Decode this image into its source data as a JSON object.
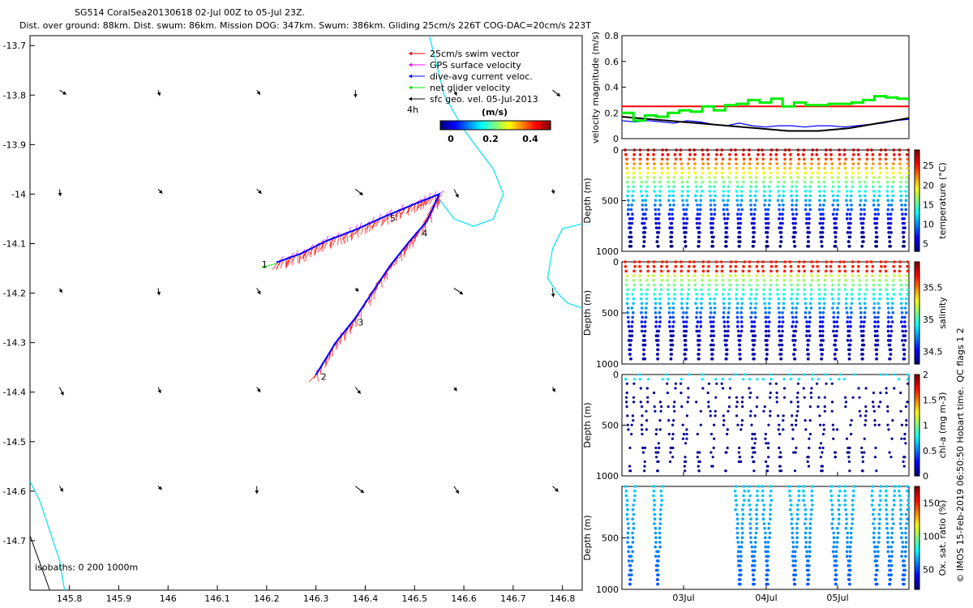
{
  "header": {
    "line1": "SG514 CoralSea20130618 02-Jul 00Z to 05-Jul 23Z.",
    "line2": "Dist. over ground: 88km. Dist. swum: 86km. Mission DOG: 347km. Swum: 386km. Gliding 25cm/s 226T COG-DAC=20cm/s 223T"
  },
  "colors": {
    "swim": "#ff0000",
    "gps": "#ff00ff",
    "dac": "#0000ff",
    "net": "#00ee00",
    "geo": "#000000",
    "isobath": "#00e5ee"
  },
  "map": {
    "xlim": [
      145.72,
      146.84
    ],
    "ylim": [
      -14.8,
      -13.68
    ],
    "xticks": [
      "145.8",
      "145.9",
      "146",
      "146.1",
      "146.2",
      "146.3",
      "146.4",
      "146.5",
      "146.6",
      "146.7",
      "146.8"
    ],
    "yticks": [
      "-13.7",
      "-13.8",
      "-13.9",
      "-14",
      "-14.1",
      "-14.2",
      "-14.3",
      "-14.4",
      "-14.5",
      "-14.6",
      "-14.7"
    ],
    "legend": [
      "25cm/s swim vector",
      "GPS surface velocity",
      "dive-avg current veloc.",
      "net glider velocity",
      "sfc geo. vel. 05-Jul-2013"
    ],
    "legend_note": "4h",
    "colorbar": {
      "label": "(m/s)",
      "ticks": [
        "0",
        "0.2",
        "0.4"
      ]
    },
    "isobath_label": "isobaths: 0   200  1000m",
    "track_labels": [
      {
        "text": "5",
        "lon": 146.45,
        "lat": -14.055
      },
      {
        "text": "4",
        "lon": 146.515,
        "lat": -14.085
      },
      {
        "text": "3",
        "lon": 146.385,
        "lat": -14.265
      },
      {
        "text": "2",
        "lon": 146.31,
        "lat": -14.375
      },
      {
        "text": "1",
        "lon": 146.19,
        "lat": -14.148
      }
    ],
    "track": [
      [
        146.3,
        -14.365
      ],
      [
        146.34,
        -14.3
      ],
      [
        146.38,
        -14.25
      ],
      [
        146.42,
        -14.19
      ],
      [
        146.45,
        -14.145
      ],
      [
        146.49,
        -14.095
      ],
      [
        146.525,
        -14.055
      ],
      [
        146.55,
        -14.0
      ],
      [
        146.5,
        -14.02
      ],
      [
        146.44,
        -14.045
      ],
      [
        146.38,
        -14.072
      ],
      [
        146.32,
        -14.095
      ],
      [
        146.27,
        -14.12
      ],
      [
        146.22,
        -14.138
      ]
    ]
  },
  "chart_data": [
    {
      "type": "line",
      "title": "",
      "ylabel": "velocity magnitude (m/s)",
      "ylim": [
        0,
        0.8
      ],
      "yticks": [
        "0",
        "0.2",
        "0.4",
        "0.6",
        "0.8"
      ],
      "series": [
        {
          "values": [
            0.25,
            0.25
          ]
        },
        {
          "values": [
            0.14,
            0.13,
            0.14,
            0.13,
            0.12,
            0.14,
            0.13,
            0.11,
            0.1,
            0.12,
            0.1,
            0.09,
            0.1,
            0.1,
            0.09,
            0.1,
            0.1,
            0.09,
            0.1,
            0.11,
            0.12,
            0.14,
            0.15
          ]
        },
        {
          "values": [
            0.17,
            0.16,
            0.15,
            0.14,
            0.13,
            0.12,
            0.11,
            0.1,
            0.09,
            0.08,
            0.07,
            0.06,
            0.06,
            0.06,
            0.07,
            0.08,
            0.1,
            0.12,
            0.14,
            0.16
          ]
        },
        {
          "values": [
            0.2,
            0.14,
            0.18,
            0.17,
            0.2,
            0.22,
            0.21,
            0.25,
            0.22,
            0.26,
            0.27,
            0.3,
            0.28,
            0.31,
            0.25,
            0.28,
            0.26,
            0.26,
            0.27,
            0.27,
            0.28,
            0.3,
            0.33,
            0.32,
            0.31
          ]
        }
      ]
    },
    {
      "type": "scatter",
      "ylabel": "Depth (m)",
      "colorbar_label": "temperature (°C)",
      "cticks": [
        "5",
        "10",
        "15",
        "20",
        "25"
      ],
      "clim": [
        3,
        29
      ],
      "yticks": [
        "0",
        "500",
        "1000"
      ],
      "ylim": [
        0,
        1000
      ],
      "dives": 21
    },
    {
      "type": "scatter",
      "ylabel": "Depth (m)",
      "colorbar_label": "salinity",
      "cticks": [
        "34.5",
        "35",
        "35.5"
      ],
      "clim": [
        34.3,
        35.9
      ],
      "yticks": [
        "0",
        "500",
        "1000"
      ],
      "ylim": [
        0,
        1000
      ],
      "dives": 21
    },
    {
      "type": "scatter",
      "ylabel": "Depth (m)",
      "colorbar_label": "chl-a (mg m-3)",
      "cticks": [
        "0",
        "0.5",
        "1",
        "1.5",
        "2"
      ],
      "clim": [
        0,
        2
      ],
      "yticks": [
        "0",
        "500",
        "1000"
      ],
      "ylim": [
        0,
        1000
      ],
      "dives": 21
    },
    {
      "type": "scatter",
      "ylabel": "Depth (m)",
      "colorbar_label": "Ox. sat. ratio (%)",
      "cticks": [
        "50",
        "100",
        "150"
      ],
      "clim": [
        20,
        175
      ],
      "yticks": [
        "500",
        "1000"
      ],
      "ylim": [
        0,
        1000
      ],
      "dives": 21
    }
  ],
  "time_axis": [
    "03Jul",
    "04Jul",
    "05Jul"
  ],
  "side_note": "QC flags 1  2",
  "credit": "© IMOS 15-Feb-2019 06:50:50 Hobart time."
}
